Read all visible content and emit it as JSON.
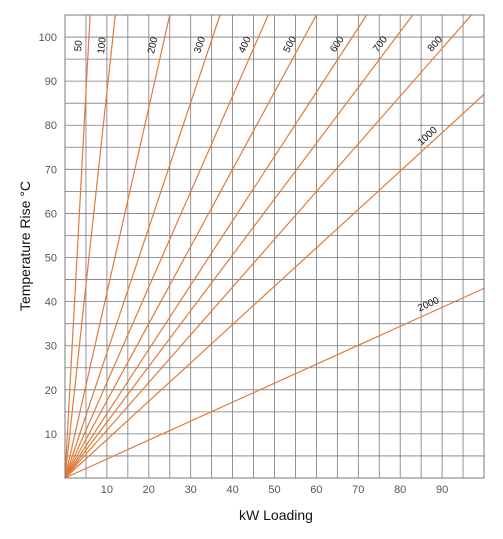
{
  "chart_data": {
    "type": "line",
    "xlabel": "kW Loading",
    "ylabel": "Temperature Rise °C",
    "xlim": [
      0,
      100
    ],
    "ylim": [
      0,
      105
    ],
    "x_ticks": [
      10,
      20,
      30,
      40,
      50,
      60,
      70,
      80,
      90
    ],
    "y_ticks": [
      10,
      20,
      30,
      40,
      50,
      60,
      70,
      80,
      90,
      100
    ],
    "grid": true,
    "line_color": "#e07b39",
    "series": [
      {
        "name": "50",
        "points": [
          [
            0,
            0
          ],
          [
            6,
            105
          ]
        ]
      },
      {
        "name": "100",
        "points": [
          [
            0,
            0
          ],
          [
            12,
            105
          ]
        ]
      },
      {
        "name": "200",
        "points": [
          [
            0,
            0
          ],
          [
            25,
            105
          ]
        ]
      },
      {
        "name": "300",
        "points": [
          [
            0,
            0
          ],
          [
            37,
            105
          ]
        ]
      },
      {
        "name": "400",
        "points": [
          [
            0,
            0
          ],
          [
            48.5,
            105
          ]
        ]
      },
      {
        "name": "500",
        "points": [
          [
            0,
            0
          ],
          [
            60,
            105
          ]
        ]
      },
      {
        "name": "600",
        "points": [
          [
            0,
            0
          ],
          [
            72,
            105
          ]
        ]
      },
      {
        "name": "700",
        "points": [
          [
            0,
            0
          ],
          [
            83,
            105
          ]
        ]
      },
      {
        "name": "800",
        "points": [
          [
            0,
            0
          ],
          [
            97,
            105
          ]
        ]
      },
      {
        "name": "1000",
        "points": [
          [
            0,
            0
          ],
          [
            100,
            87
          ]
        ]
      },
      {
        "name": "2000",
        "points": [
          [
            0,
            0
          ],
          [
            100,
            43
          ]
        ]
      }
    ]
  }
}
